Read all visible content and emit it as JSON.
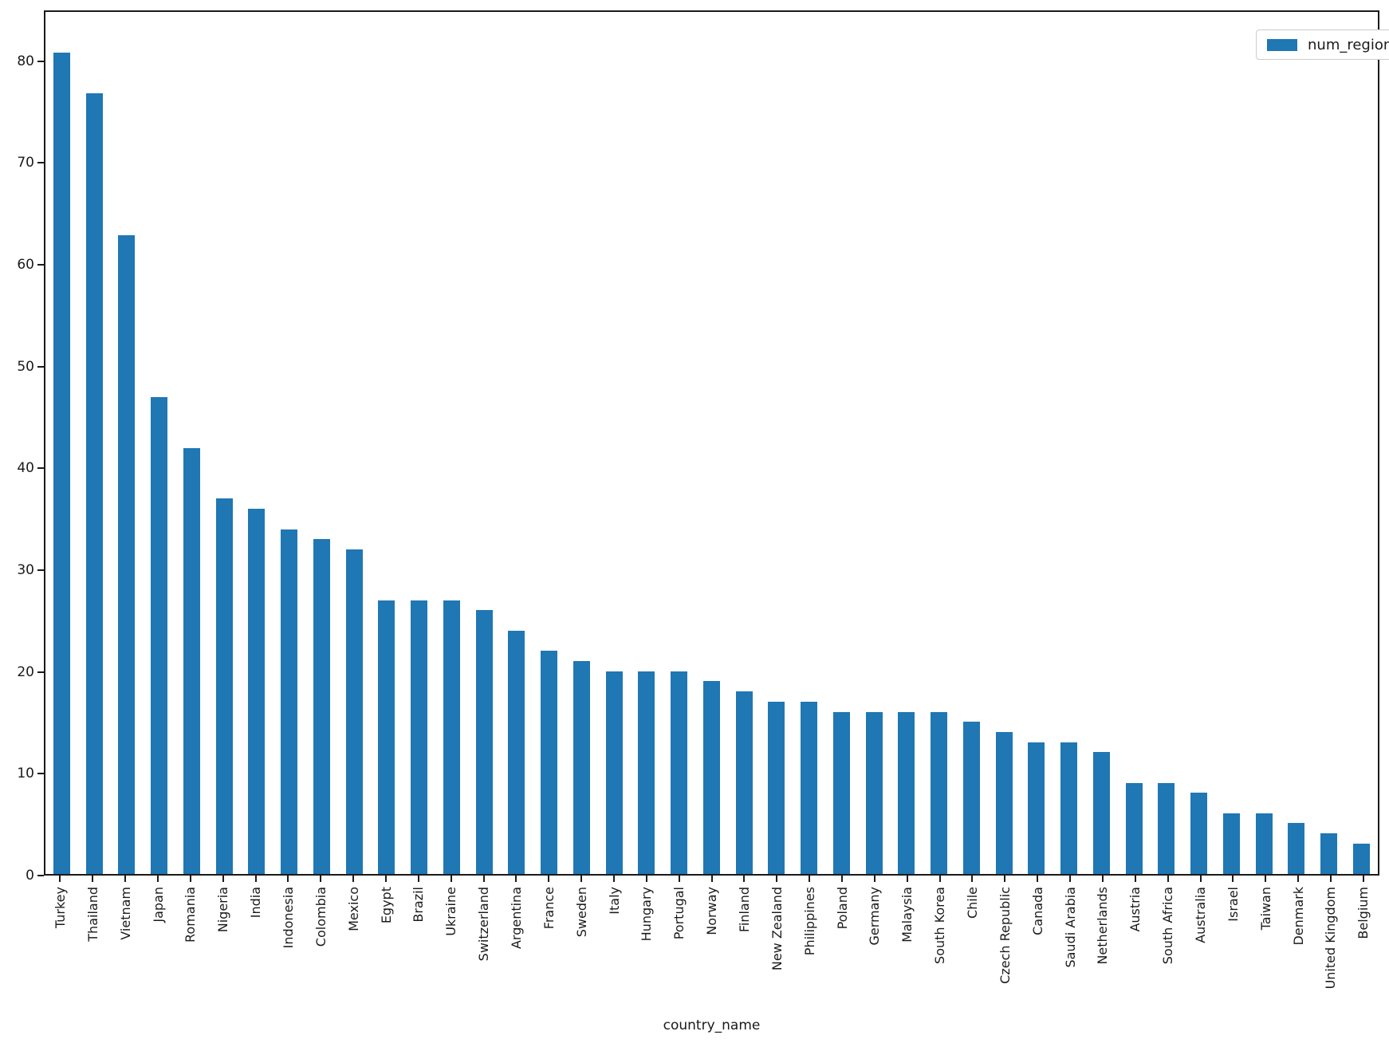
{
  "chart_data": {
    "type": "bar",
    "title": "",
    "xlabel": "country_name",
    "ylabel": "",
    "grid": false,
    "legend": {
      "label": "num_regions",
      "position": "upper right"
    },
    "colors": {
      "bar": "#1f77b4",
      "spine": "#1a1a1a",
      "text": "#1a1a1a",
      "legend_border": "#cccccc",
      "background": "#ffffff"
    },
    "ylim": [
      0,
      85
    ],
    "yticks": [
      0,
      10,
      20,
      30,
      40,
      50,
      60,
      70,
      80
    ],
    "categories": [
      "Turkey",
      "Thailand",
      "Vietnam",
      "Japan",
      "Romania",
      "Nigeria",
      "India",
      "Indonesia",
      "Colombia",
      "Mexico",
      "Egypt",
      "Brazil",
      "Ukraine",
      "Switzerland",
      "Argentina",
      "France",
      "Sweden",
      "Italy",
      "Hungary",
      "Portugal",
      "Norway",
      "Finland",
      "New Zealand",
      "Philippines",
      "Poland",
      "Germany",
      "Malaysia",
      "South Korea",
      "Chile",
      "Czech Republic",
      "Canada",
      "Saudi Arabia",
      "Netherlands",
      "Austria",
      "South Africa",
      "Australia",
      "Israel",
      "Taiwan",
      "Denmark",
      "United Kingdom",
      "Belgium"
    ],
    "series": [
      {
        "name": "num_regions",
        "values": [
          81,
          77,
          63,
          47,
          42,
          37,
          36,
          34,
          33,
          32,
          27,
          27,
          27,
          26,
          24,
          22,
          21,
          20,
          20,
          20,
          19,
          18,
          17,
          17,
          16,
          16,
          16,
          16,
          15,
          14,
          13,
          13,
          12,
          9,
          9,
          8,
          6,
          6,
          5,
          4,
          3
        ]
      }
    ]
  }
}
